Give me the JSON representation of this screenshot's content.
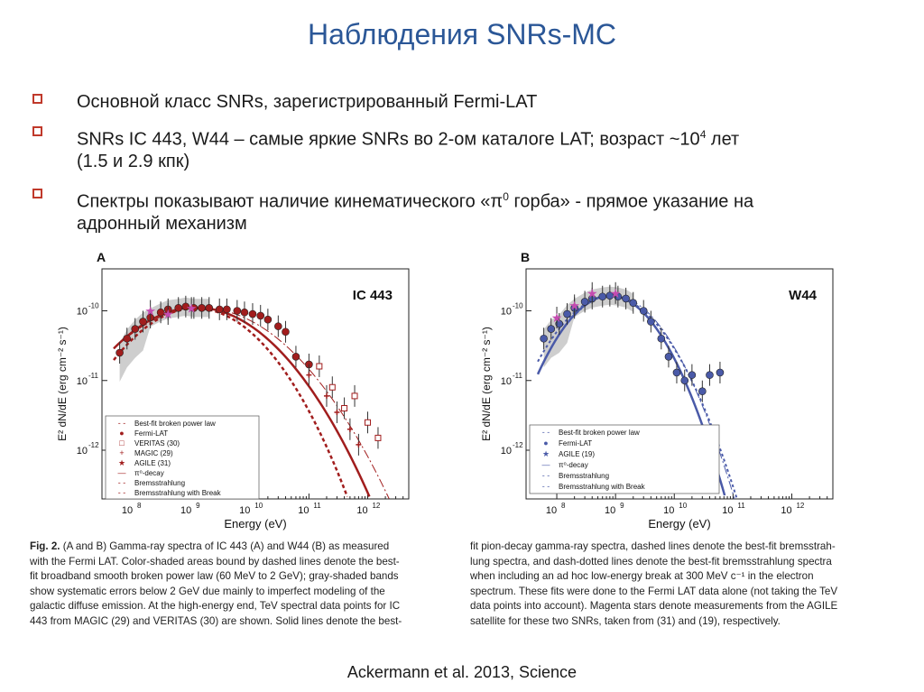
{
  "title": "Наблюдения SNRs-MC",
  "bullets": [
    {
      "line1": "Основной класс SNRs, зарегистрированный Fermi-LAT"
    },
    {
      "line1_pre": "SNRs IC 443, W44 – самые яркие SNRs во 2-ом каталоге LAT; возраст ~10",
      "line1_sup": "4",
      "line1_post": " лет",
      "line2": "(1.5 и 2.9 кпк)"
    },
    {
      "line1_pre": "Спектры показывают наличие кинематического  «π",
      "line1_sup": "0",
      "line1_post": " горба» - прямое указание на",
      "line2": "адронный механизм"
    }
  ],
  "figure": {
    "panel_a": {
      "letter": "A",
      "label": "IC 443"
    },
    "panel_b": {
      "letter": "B",
      "label": "W44"
    },
    "ylabel": "E² dN/dE (erg cm⁻² s⁻¹)",
    "xlabel": "Energy (eV)",
    "yticks": [
      {
        "base": "10",
        "exp": "-10"
      },
      {
        "base": "10",
        "exp": "-11"
      },
      {
        "base": "10",
        "exp": "-12"
      }
    ],
    "xticks": [
      {
        "base": "10",
        "exp": "8"
      },
      {
        "base": "10",
        "exp": "9"
      },
      {
        "base": "10",
        "exp": "10"
      },
      {
        "base": "10",
        "exp": "11"
      },
      {
        "base": "10",
        "exp": "12"
      }
    ],
    "legend_a": [
      "Best-fit broken power law",
      "Fermi-LAT",
      "VERITAS (30)",
      "MAGIC (29)",
      "AGILE (31)",
      "π⁰-decay",
      "Bremsstrahlung",
      "Bremsstrahlung with Break"
    ],
    "legend_b": [
      "Best-fit broken power law",
      "Fermi-LAT",
      "AGILE (19)",
      "π⁰-decay",
      "Bremsstrahlung",
      "Bremsstrahlung with Break"
    ],
    "colors": {
      "ic443": "#a11d1d",
      "w44": "#4a5aa8",
      "agile": "#c44bb0",
      "shade": "#bdbdbd"
    }
  },
  "chart_data": [
    {
      "type": "scatter",
      "title": "IC 443",
      "xlabel": "Energy (eV)",
      "ylabel": "E² dN/dE (erg cm⁻² s⁻¹)",
      "log_x": true,
      "log_y": true,
      "xlim": [
        30000000.0,
        5000000000000.0
      ],
      "ylim": [
        2e-13,
        4e-10
      ],
      "series": [
        {
          "name": "Fermi-LAT",
          "x": [
            60000000.0,
            80000000.0,
            110000000.0,
            150000000.0,
            200000000.0,
            300000000.0,
            400000000.0,
            600000000.0,
            800000000.0,
            1100000000.0,
            1500000000.0,
            2000000000.0,
            3000000000.0,
            4000000000.0,
            6000000000.0,
            8000000000.0,
            11000000000.0,
            15000000000.0,
            20000000000.0,
            30000000000.0,
            40000000000.0,
            60000000000.0,
            100000000000.0
          ],
          "y": [
            2.5e-11,
            4e-11,
            5.5e-11,
            7e-11,
            8e-11,
            9.5e-11,
            1.05e-10,
            1.1e-10,
            1.15e-10,
            1.1e-10,
            1.1e-10,
            1.1e-10,
            1.05e-10,
            1.05e-10,
            1e-10,
            9.5e-11,
            9e-11,
            8.5e-11,
            7.5e-11,
            6e-11,
            5e-11,
            2.2e-11,
            1.7e-11
          ]
        },
        {
          "name": "VERITAS (30)",
          "x": [
            150000000000.0,
            250000000000.0,
            400000000000.0,
            600000000000.0,
            1000000000000.0,
            1500000000000.0
          ],
          "y": [
            1.6e-11,
            8e-12,
            4e-12,
            6e-12,
            2.5e-12,
            1.5e-12
          ]
        },
        {
          "name": "MAGIC (29)",
          "x": [
            100000000000.0,
            200000000000.0,
            300000000000.0,
            500000000000.0,
            700000000000.0
          ],
          "y": [
            1.2e-11,
            6e-12,
            3.5e-12,
            2e-12,
            1.2e-12
          ]
        },
        {
          "name": "AGILE (31)",
          "x": [
            200000000.0,
            400000000.0,
            1000000000.0
          ],
          "y": [
            1e-10,
            9e-11,
            1.1e-10
          ]
        }
      ]
    },
    {
      "type": "scatter",
      "title": "W44",
      "xlabel": "Energy (eV)",
      "ylabel": "E² dN/dE (erg cm⁻² s⁻¹)",
      "log_x": true,
      "log_y": true,
      "xlim": [
        30000000.0,
        5000000000000.0
      ],
      "ylim": [
        2e-13,
        4e-10
      ],
      "series": [
        {
          "name": "Fermi-LAT",
          "x": [
            60000000.0,
            80000000.0,
            110000000.0,
            150000000.0,
            200000000.0,
            300000000.0,
            400000000.0,
            600000000.0,
            800000000.0,
            1100000000.0,
            1500000000.0,
            2000000000.0,
            3000000000.0,
            4000000000.0,
            6000000000.0,
            8000000000.0,
            11000000000.0,
            15000000000.0,
            20000000000.0,
            30000000000.0,
            40000000000.0,
            60000000000.0
          ],
          "y": [
            4e-11,
            5.5e-11,
            6.5e-11,
            9e-11,
            1.1e-10,
            1.35e-10,
            1.5e-10,
            1.6e-10,
            1.65e-10,
            1.6e-10,
            1.5e-10,
            1.3e-10,
            1e-10,
            7e-11,
            4e-11,
            2.2e-11,
            1.3e-11,
            1e-11,
            1.2e-11,
            7e-12,
            1.2e-11,
            1.3e-11
          ]
        },
        {
          "name": "AGILE (19)",
          "x": [
            100000000.0,
            200000000.0,
            400000000.0,
            1000000000.0
          ],
          "y": [
            8e-11,
            1.2e-10,
            1.8e-10,
            1.8e-10
          ]
        }
      ]
    }
  ],
  "caption": {
    "col1": [
      {
        "bold": "Fig. 2. ",
        "text": "(A and B) Gamma-ray spectra of IC 443 (A) and W44 (B) as measured"
      },
      {
        "text": "with the Fermi LAT. Color-shaded areas bound by dashed lines denote the best-"
      },
      {
        "text": "fit broadband smooth broken power law (60 MeV to 2 GeV); gray-shaded bands"
      },
      {
        "text": "show systematic errors below 2 GeV due mainly to imperfect modeling of the"
      },
      {
        "text": "galactic diffuse emission. At the high-energy end, TeV spectral data points for IC"
      },
      {
        "text": "443 from MAGIC (29) and VERITAS (30) are shown. Solid lines denote the best-"
      }
    ],
    "col2": [
      {
        "text": "fit pion-decay gamma-ray spectra, dashed lines denote the best-fit bremsstrah-"
      },
      {
        "text": "lung spectra, and dash-dotted lines denote the best-fit bremsstrahlung spectra"
      },
      {
        "text": "when including an ad hoc low-energy break at 300 MeV c⁻¹ in the electron"
      },
      {
        "text": "spectrum. These fits were done to the Fermi LAT data alone (not taking the TeV"
      },
      {
        "text": "data points into account). Magenta stars denote measurements from the AGILE"
      },
      {
        "text": "satellite for these two SNRs, taken from (31) and (19), respectively."
      }
    ]
  },
  "citation": "Ackermann et al. 2013, Science"
}
